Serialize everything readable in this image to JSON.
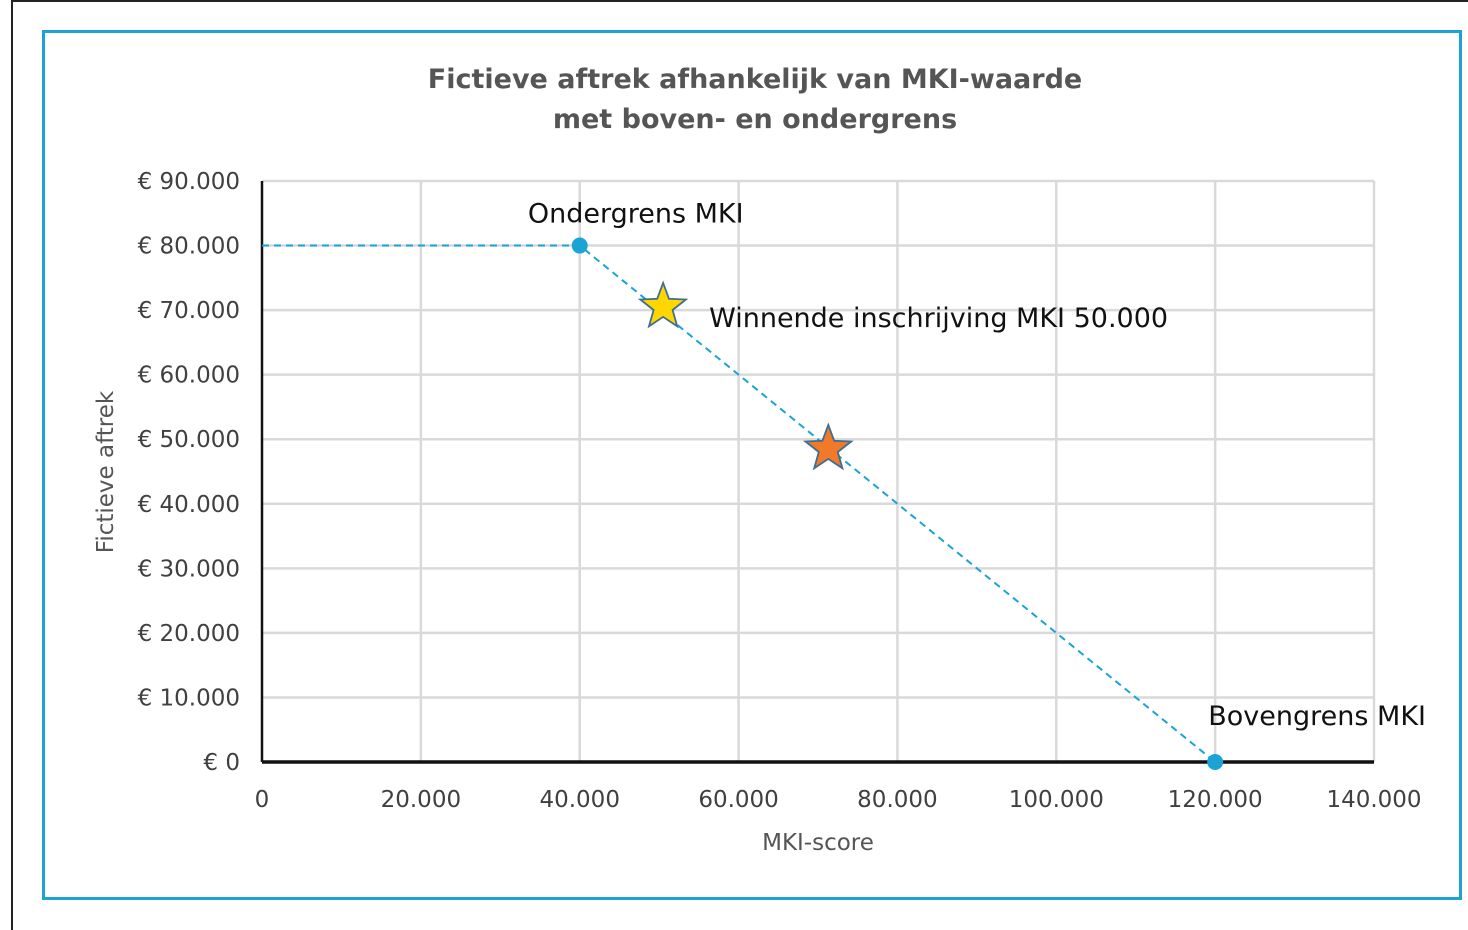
{
  "chart_data": {
    "type": "line",
    "title": "Fictieve aftrek afhankelijk van MKI-waarde",
    "subtitle": "met boven- en ondergrens",
    "xlabel": "MKI-score",
    "ylabel": "Fictieve aftrek",
    "xlim": [
      0,
      140000
    ],
    "ylim": [
      0,
      90000
    ],
    "x_ticks": [
      0,
      20000,
      40000,
      60000,
      80000,
      100000,
      120000,
      140000
    ],
    "x_tick_labels": [
      "0",
      "20.000",
      "40.000",
      "60.000",
      "80.000",
      "100.000",
      "120.000",
      "140.000"
    ],
    "y_ticks": [
      0,
      10000,
      20000,
      30000,
      40000,
      50000,
      60000,
      70000,
      80000,
      90000
    ],
    "y_tick_labels": [
      "€ 0",
      "€ 10.000",
      "€ 20.000",
      "€ 30.000",
      "€ 40.000",
      "€ 50.000",
      "€ 60.000",
      "€ 70.000",
      "€ 80.000",
      "€ 90.000"
    ],
    "grid": true,
    "line": {
      "style": "dashed",
      "color": "#1ba3d6",
      "points": [
        {
          "x": 0,
          "y": 80000
        },
        {
          "x": 40000,
          "y": 80000
        },
        {
          "x": 120000,
          "y": 0
        }
      ]
    },
    "markers": [
      {
        "type": "dot",
        "x": 40000,
        "y": 80000,
        "color": "#1ba3d6",
        "label": "Ondergrens MKI"
      },
      {
        "type": "dot",
        "x": 120000,
        "y": 0,
        "color": "#1ba3d6",
        "label": "Bovengrens MKI"
      },
      {
        "type": "star",
        "x": 50500,
        "y": 70500,
        "color": "#ffd700",
        "label": "Winnende inschrijving MKI 50.000"
      },
      {
        "type": "star",
        "x": 71300,
        "y": 48500,
        "color": "#f07a2a",
        "label": ""
      }
    ]
  }
}
